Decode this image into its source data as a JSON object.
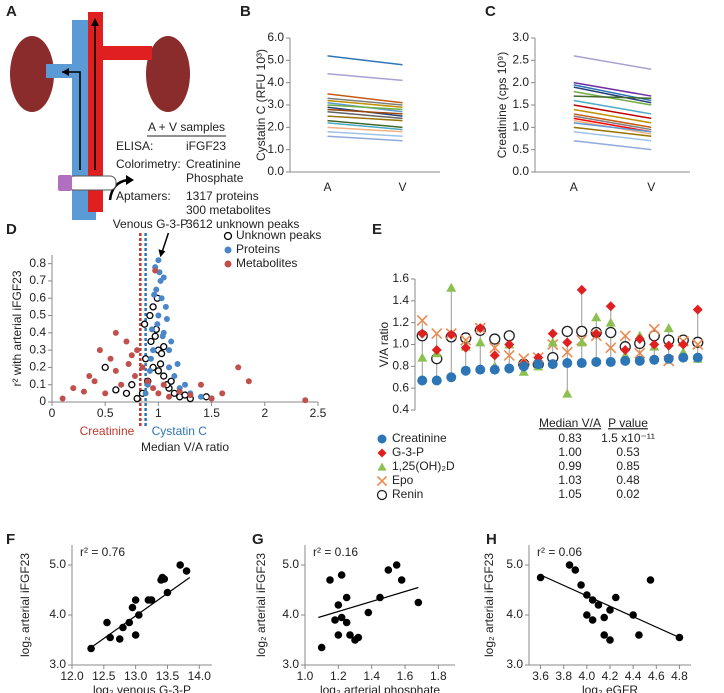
{
  "diagram": {
    "label": "A",
    "heading": "A + V samples",
    "rows": [
      {
        "key": "ELISA:",
        "lines": [
          "iFGF23"
        ]
      },
      {
        "key": "Colorimetry:",
        "lines": [
          "Creatinine",
          "Phosphate"
        ]
      },
      {
        "key": "Aptamers:",
        "lines": [
          "1317 proteins",
          "300 metabolites",
          "3612 unknown peaks"
        ]
      }
    ]
  },
  "chart_data": [
    {
      "type": "line",
      "label": "B",
      "y_label": "Cystatin C (RFU 10³)",
      "categories": [
        "A",
        "V"
      ],
      "ylim": [
        0,
        6
      ],
      "yticks": [
        {
          "value": 0,
          "label": "0.0"
        },
        {
          "value": 1,
          "label": "1.0"
        },
        {
          "value": 2,
          "label": "2.0"
        },
        {
          "value": 3,
          "label": "3.0"
        },
        {
          "value": 4,
          "label": "4.0"
        },
        {
          "value": 5,
          "label": "5.0"
        },
        {
          "value": 6,
          "label": "6.0"
        }
      ],
      "series": [
        {
          "color": "#2e75b6",
          "values": [
            5.2,
            4.8
          ]
        },
        {
          "color": "#a9a0d0",
          "values": [
            4.4,
            4.1
          ]
        },
        {
          "color": "#c55a11",
          "values": [
            3.5,
            3.1
          ]
        },
        {
          "color": "#7f7f7f",
          "values": [
            3.3,
            3.0
          ]
        },
        {
          "color": "#bf9000",
          "values": [
            3.2,
            2.9
          ]
        },
        {
          "color": "#5b9bd5",
          "values": [
            3.1,
            2.7
          ]
        },
        {
          "color": "#70ad47",
          "values": [
            3.0,
            2.8
          ]
        },
        {
          "color": "#264478",
          "values": [
            2.9,
            2.5
          ]
        },
        {
          "color": "#9e480e",
          "values": [
            2.8,
            2.6
          ]
        },
        {
          "color": "#636363",
          "values": [
            2.7,
            2.4
          ]
        },
        {
          "color": "#997300",
          "values": [
            2.5,
            2.3
          ]
        },
        {
          "color": "#43682b",
          "values": [
            2.3,
            2.0
          ]
        },
        {
          "color": "#4bacc6",
          "values": [
            2.2,
            1.9
          ]
        },
        {
          "color": "#f4b183",
          "values": [
            2.0,
            1.8
          ]
        },
        {
          "color": "#9dc3e6",
          "values": [
            1.8,
            1.6
          ]
        },
        {
          "color": "#8faadc",
          "values": [
            1.6,
            1.4
          ]
        }
      ]
    },
    {
      "type": "line",
      "label": "C",
      "y_label": "Creatinine (cps 10⁹)",
      "categories": [
        "A",
        "V"
      ],
      "ylim": [
        0,
        3
      ],
      "yticks": [
        {
          "value": 0,
          "label": "0.0"
        },
        0.5,
        {
          "value": 1,
          "label": "1.0"
        },
        1.5,
        {
          "value": 2,
          "label": "2.0"
        },
        2.5,
        {
          "value": 3,
          "label": "3.0"
        }
      ],
      "series": [
        {
          "color": "#a9a0d0",
          "values": [
            2.6,
            2.3
          ]
        },
        {
          "color": "#7030a0",
          "values": [
            2.0,
            1.7
          ]
        },
        {
          "color": "#2e75b6",
          "values": [
            1.95,
            1.6
          ]
        },
        {
          "color": "#264478",
          "values": [
            1.9,
            1.55
          ]
        },
        {
          "color": "#70ad47",
          "values": [
            1.8,
            1.5
          ]
        },
        {
          "color": "#43682b",
          "values": [
            1.7,
            1.65
          ]
        },
        {
          "color": "#4bacc6",
          "values": [
            1.6,
            1.3
          ]
        },
        {
          "color": "#c00000",
          "values": [
            1.5,
            1.2
          ]
        },
        {
          "color": "#bf9000",
          "values": [
            1.4,
            1.1
          ]
        },
        {
          "color": "#c55a11",
          "values": [
            1.3,
            1.0
          ]
        },
        {
          "color": "#7f7f7f",
          "values": [
            1.25,
            0.95
          ]
        },
        {
          "color": "#ff0000",
          "values": [
            1.2,
            0.9
          ]
        },
        {
          "color": "#f4b183",
          "values": [
            1.15,
            0.85
          ]
        },
        {
          "color": "#5b9bd5",
          "values": [
            1.1,
            0.9
          ]
        },
        {
          "color": "#997300",
          "values": [
            1.0,
            0.8
          ]
        },
        {
          "color": "#9dc3e6",
          "values": [
            0.9,
            0.7
          ]
        },
        {
          "color": "#8faadc",
          "values": [
            0.7,
            0.5
          ]
        }
      ]
    },
    {
      "type": "scatter",
      "label": "D",
      "annotation": "Venous G-3-P",
      "x_label": "Median V/A ratio",
      "y_label": "r² with arterial iFGF23",
      "xlim": [
        0,
        2.5
      ],
      "xticks": [
        0,
        0.5,
        1,
        1.5,
        2,
        2.5
      ],
      "ylim": [
        0,
        0.85
      ],
      "yticks": [
        0,
        0.1,
        0.2,
        0.3,
        0.4,
        0.5,
        0.6,
        0.7,
        0.8
      ],
      "legend": "top-right",
      "reference_lines": [
        {
          "name": "Creatinine",
          "x": 0.83,
          "color": "#c0392b"
        },
        {
          "name": "Cystatin C",
          "x": 0.88,
          "color": "#2e75b6"
        }
      ],
      "series": [
        {
          "name": "Unknown peaks",
          "color": "#000000",
          "marker": "open-circle",
          "x": [
            0.85,
            0.9,
            0.95,
            1.0,
            1.05,
            1.1,
            0.8,
            0.88,
            0.93,
            0.98,
            1.02,
            1.08,
            1.15,
            1.2,
            0.75,
            0.7,
            0.92,
            0.97,
            1.0,
            1.03,
            1.12,
            1.25,
            1.3,
            0.6,
            0.5,
            0.87,
            0.95,
            1.05,
            0.99,
            1.45
          ],
          "y": [
            0.05,
            0.12,
            0.2,
            0.3,
            0.15,
            0.08,
            0.02,
            0.25,
            0.35,
            0.42,
            0.22,
            0.1,
            0.05,
            0.03,
            0.1,
            0.05,
            0.5,
            0.38,
            0.18,
            0.28,
            0.12,
            0.04,
            0.02,
            0.07,
            0.2,
            0.45,
            0.55,
            0.32,
            0.6,
            0.03
          ]
        },
        {
          "name": "Proteins",
          "color": "#4a86c8",
          "marker": "circle",
          "x": [
            0.9,
            0.95,
            1.0,
            1.05,
            1.1,
            1.15,
            1.2,
            0.98,
            1.02,
            0.93,
            1.07,
            1.12,
            0.97,
            1.0,
            1.03,
            0.99,
            1.05,
            1.25,
            1.3,
            1.4,
            0.88,
            0.92,
            1.08,
            1.18,
            1.01,
            0.96,
            1.04,
            1.5,
            1.1,
            0.94
          ],
          "y": [
            0.1,
            0.3,
            0.5,
            0.4,
            0.2,
            0.15,
            0.08,
            0.65,
            0.7,
            0.25,
            0.55,
            0.35,
            0.78,
            0.82,
            0.6,
            0.45,
            0.72,
            0.1,
            0.05,
            0.03,
            0.05,
            0.18,
            0.48,
            0.22,
            0.75,
            0.62,
            0.38,
            0.02,
            0.3,
            0.42
          ]
        },
        {
          "name": "Metabolites",
          "color": "#c0504d",
          "marker": "circle",
          "x": [
            0.1,
            0.2,
            0.3,
            0.4,
            0.45,
            0.5,
            0.55,
            0.6,
            0.65,
            0.7,
            0.72,
            0.78,
            0.8,
            0.85,
            0.9,
            0.95,
            1.0,
            1.05,
            1.1,
            1.2,
            1.3,
            1.4,
            1.5,
            1.6,
            1.75,
            1.85,
            2.38,
            0.35,
            0.6,
            0.75,
            0.97
          ],
          "y": [
            0.02,
            0.08,
            0.06,
            0.12,
            0.3,
            0.05,
            0.25,
            0.18,
            0.1,
            0.35,
            0.22,
            0.15,
            0.3,
            0.2,
            0.12,
            0.08,
            0.05,
            0.1,
            0.03,
            0.06,
            0.04,
            0.1,
            0.02,
            0.05,
            0.2,
            0.12,
            0.01,
            0.15,
            0.4,
            0.27,
            0.76
          ]
        }
      ]
    },
    {
      "type": "dot",
      "label": "E",
      "y_label": "V/A ratio",
      "categories": [
        null,
        null,
        null,
        null,
        null,
        null,
        null,
        null,
        null,
        null,
        null,
        null,
        null,
        null,
        null,
        null,
        null,
        null,
        null,
        null
      ],
      "ylim": [
        0.4,
        1.6
      ],
      "yticks": [
        0.4,
        0.6,
        0.8,
        {
          "value": 1.0,
          "label": "1.0"
        },
        1.2,
        1.4,
        1.6
      ],
      "table": {
        "columns": [
          "Median V/A",
          "P value"
        ],
        "rows": [
          [
            "0.83",
            "1.5 x10⁻¹¹"
          ],
          [
            "1.00",
            "0.53"
          ],
          [
            "0.99",
            "0.85"
          ],
          [
            "1.03",
            "0.48"
          ],
          [
            "1.05",
            "0.02"
          ]
        ]
      },
      "series": [
        {
          "name": "Creatinine",
          "color": "#2e75b6",
          "marker": "circle",
          "values": [
            0.67,
            0.67,
            0.7,
            0.76,
            0.77,
            0.77,
            0.78,
            0.8,
            0.82,
            0.82,
            0.83,
            0.83,
            0.84,
            0.84,
            0.85,
            0.85,
            0.86,
            0.87,
            0.88,
            0.88
          ]
        },
        {
          "name": "G-3-P",
          "color": "#e02020",
          "marker": "diamond",
          "values": [
            1.1,
            0.95,
            1.09,
            0.97,
            1.15,
            0.9,
            1.0,
            0.82,
            0.88,
            1.1,
            1.02,
            1.5,
            1.1,
            1.35,
            0.95,
            1.05,
            1.0,
            0.99,
            1.0,
            1.32
          ]
        },
        {
          "name": "1,25(OH)₂D",
          "color": "#8cc152",
          "marker": "triangle",
          "values": [
            0.88,
            0.92,
            1.52,
            0.98,
            1.02,
            0.8,
            1.0,
            0.75,
            0.8,
            1.02,
            0.55,
            1.02,
            1.25,
            1.2,
            0.9,
            1.08,
            0.98,
            1.15,
            0.93,
            0.87
          ]
        },
        {
          "name": "Epo",
          "color": "#ed8b4f",
          "marker": "x",
          "values": [
            1.22,
            1.1,
            1.1,
            1.04,
            1.15,
            0.97,
            0.9,
            0.87,
            0.88,
            1.0,
            0.93,
            1.04,
            1.08,
            0.97,
            1.08,
            0.92,
            1.14,
            0.85,
            1.03,
            1.0
          ]
        },
        {
          "name": "Renin",
          "color": "#222222",
          "marker": "open-circle",
          "values": [
            1.08,
            0.87,
            1.07,
            1.06,
            1.13,
            1.05,
            1.08,
            0.82,
            0.82,
            0.88,
            1.12,
            1.12,
            1.11,
            1.11,
            0.98,
            1.01,
            1.08,
            1.04,
            1.04,
            1.02
          ]
        }
      ]
    },
    {
      "type": "scatter",
      "label": "F",
      "annotation": "r² = 0.76",
      "x_label": "log₂ venous G-3-P",
      "y_label": "log₂ arterial iFGF23",
      "color": "#000000",
      "xlim": [
        12,
        14.2
      ],
      "xticks": [
        {
          "value": 12,
          "label": "12.0"
        },
        12.5,
        {
          "value": 13,
          "label": "13.0"
        },
        13.5,
        {
          "value": 14,
          "label": "14.0"
        }
      ],
      "ylim": [
        3,
        5.4
      ],
      "yticks": [
        {
          "value": 3,
          "label": "3.0"
        },
        {
          "value": 4,
          "label": "4.0"
        },
        {
          "value": 5,
          "label": "5.0"
        }
      ],
      "x": [
        12.3,
        12.55,
        12.6,
        12.75,
        12.8,
        12.9,
        12.95,
        13.0,
        13.0,
        13.05,
        13.2,
        13.25,
        13.4,
        13.42,
        13.45,
        13.5,
        13.7,
        13.8
      ],
      "y": [
        3.33,
        3.85,
        3.55,
        3.52,
        3.75,
        3.85,
        4.15,
        4.3,
        3.6,
        4.0,
        4.3,
        4.3,
        4.7,
        4.75,
        4.72,
        4.45,
        5.0,
        4.88
      ],
      "fit": {
        "x": [
          12.3,
          13.85
        ],
        "y": [
          3.35,
          4.75
        ]
      }
    },
    {
      "type": "scatter",
      "label": "G",
      "annotation": "r² = 0.16",
      "x_label": "log₂ arterial phosphate",
      "y_label": "log₂ arterial iFGF23",
      "color": "#000000",
      "xlim": [
        1.0,
        1.9
      ],
      "xticks": [
        {
          "value": 1,
          "label": "1.0"
        },
        1.2,
        1.4,
        1.6,
        1.8
      ],
      "ylim": [
        3,
        5.4
      ],
      "yticks": [
        {
          "value": 3,
          "label": "3.0"
        },
        {
          "value": 4,
          "label": "4.0"
        },
        {
          "value": 5,
          "label": "5.0"
        }
      ],
      "x": [
        1.1,
        1.15,
        1.18,
        1.2,
        1.2,
        1.22,
        1.25,
        1.25,
        1.27,
        1.3,
        1.32,
        1.38,
        1.45,
        1.5,
        1.55,
        1.58,
        1.68,
        1.22
      ],
      "y": [
        3.35,
        4.7,
        3.9,
        4.2,
        3.6,
        4.8,
        4.35,
        3.85,
        3.6,
        3.5,
        3.55,
        4.05,
        4.35,
        4.9,
        5.0,
        4.7,
        4.25,
        3.95
      ],
      "fit": {
        "x": [
          1.08,
          1.68
        ],
        "y": [
          3.95,
          4.55
        ]
      }
    },
    {
      "type": "scatter",
      "label": "H",
      "annotation": "r² = 0.06",
      "x_label": "log₂ eGFR",
      "y_label": "log₂ arterial iFGF23",
      "color": "#000000",
      "xlim": [
        3.5,
        4.9
      ],
      "xticks": [
        3.6,
        3.8,
        {
          "value": 4,
          "label": "4.0"
        },
        4.2,
        4.4,
        4.6,
        4.8
      ],
      "ylim": [
        3,
        5.4
      ],
      "yticks": [
        {
          "value": 3,
          "label": "3.0"
        },
        {
          "value": 4,
          "label": "4.0"
        },
        {
          "value": 5,
          "label": "5.0"
        }
      ],
      "x": [
        3.6,
        3.85,
        3.9,
        3.95,
        4.0,
        4.05,
        4.0,
        4.05,
        4.1,
        4.15,
        4.15,
        4.2,
        4.25,
        4.2,
        4.4,
        4.45,
        4.55,
        4.8
      ],
      "y": [
        4.75,
        5.0,
        4.9,
        4.6,
        4.4,
        4.3,
        4.0,
        3.9,
        4.2,
        3.6,
        3.95,
        3.5,
        4.35,
        4.1,
        4.0,
        3.6,
        4.7,
        3.55
      ],
      "fit": {
        "x": [
          3.6,
          4.8
        ],
        "y": [
          4.8,
          3.55
        ]
      }
    }
  ]
}
